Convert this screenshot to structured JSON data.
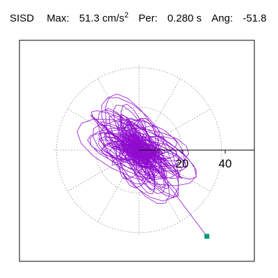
{
  "header": {
    "station": "SISD",
    "max_label": "Max:",
    "max_value": "51.3",
    "max_unit": "cm/s",
    "max_exp": "2",
    "per_label": "Per:",
    "per_value": "0.280 s",
    "ang_label": "Ang:",
    "ang_value": "-51.8"
  },
  "chart_data": {
    "type": "polar-orbit",
    "title": "SISD  Max: 51.3 cm/s2  Per: 0.280 s  Ang: -51.8",
    "radial_ticks": [
      20,
      40
    ],
    "radial_range": [
      0,
      54
    ],
    "grid": "dotted rings and 30-degree spokes",
    "axis_angle_deg": 0,
    "max_amplitude": 51.3,
    "peak_angle_deg": -51.8,
    "period_s": 0.28,
    "trace_color": "#8a00cc",
    "endpoint_color": "#009977",
    "endpoint": {
      "x": 31.5,
      "y": -40
    }
  }
}
